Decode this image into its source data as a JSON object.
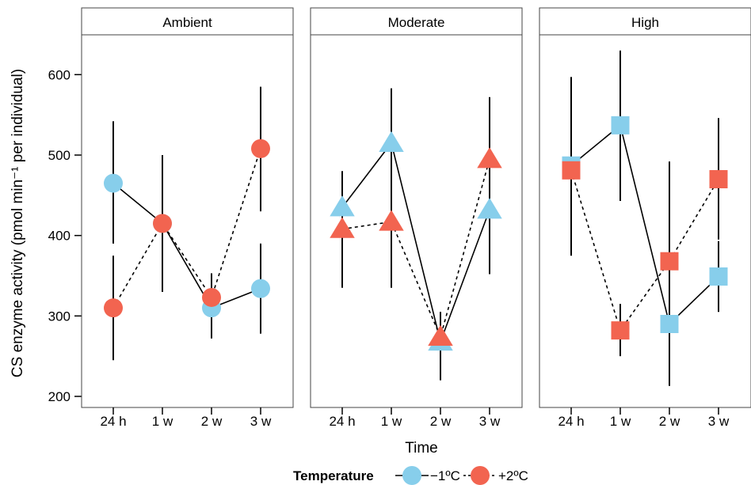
{
  "chart_data": {
    "type": "scatter",
    "ylabel": "CS enzyme activity (pmol min⁻¹ per individual)",
    "xlabel": "Time",
    "ylim": [
      195,
      650
    ],
    "yticks": [
      200,
      300,
      400,
      500,
      600
    ],
    "categories": [
      "24 h",
      "1 w",
      "2 w",
      "3 w"
    ],
    "legend": {
      "title": "Temperature",
      "position": "bottom",
      "entries": [
        {
          "label": "−1ºC",
          "color": "#87CEEB",
          "linestyle": "solid"
        },
        {
          "label": "+2ºC",
          "color": "#F26450",
          "linestyle": "dashed"
        }
      ]
    },
    "panels": [
      {
        "title": "Ambient",
        "marker": "circle",
        "series": [
          {
            "legend_index": 0,
            "values": [
              465,
              415,
              310,
              334
            ],
            "lower": [
              390,
              330,
              272,
              278
            ],
            "upper": [
              542,
              500,
              352,
              390
            ]
          },
          {
            "legend_index": 1,
            "values": [
              310,
              415,
              323,
              508
            ],
            "lower": [
              245,
              330,
              290,
              430
            ],
            "upper": [
              375,
              500,
              353,
              585
            ]
          }
        ]
      },
      {
        "title": "Moderate",
        "marker": "triangle",
        "series": [
          {
            "legend_index": 0,
            "values": [
              435,
              515,
              268,
              432
            ],
            "lower": [
              385,
              445,
              220,
              352
            ],
            "upper": [
              480,
              583,
              305,
              505
            ]
          },
          {
            "legend_index": 1,
            "values": [
              408,
              417,
              274,
              495
            ],
            "lower": [
              335,
              335,
              240,
              425
            ],
            "upper": [
              480,
              500,
              305,
              572
            ]
          }
        ]
      },
      {
        "title": "High",
        "marker": "square",
        "series": [
          {
            "legend_index": 0,
            "values": [
              487,
              537,
              290,
              349
            ],
            "lower": [
              375,
              443,
              213,
              305
            ],
            "upper": [
              597,
              630,
              365,
              393
            ]
          },
          {
            "legend_index": 1,
            "values": [
              481,
              282,
              368,
              470
            ],
            "lower": [
              375,
              250,
              300,
              395
            ],
            "upper": [
              597,
              315,
              492,
              546
            ]
          }
        ]
      }
    ]
  }
}
